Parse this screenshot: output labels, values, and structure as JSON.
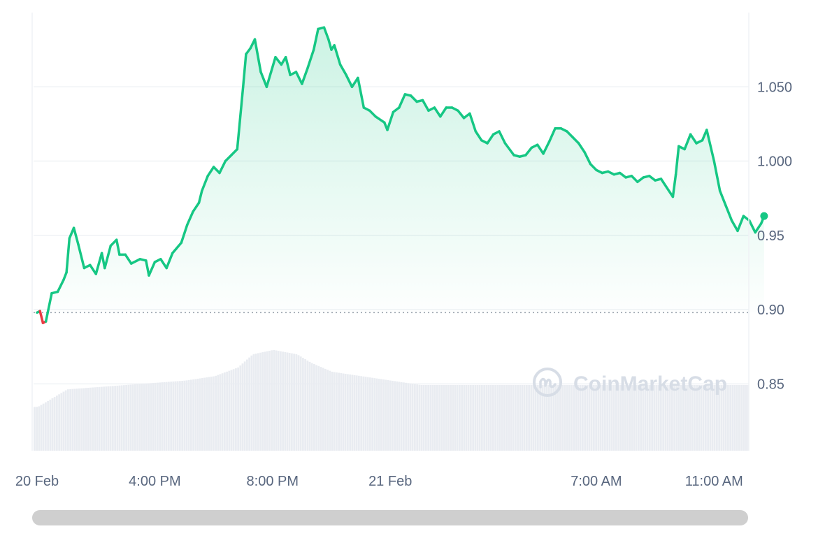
{
  "watermark": "CoinMarketCap",
  "colors": {
    "up": "#16c784",
    "down": "#ea3943",
    "grid": "#eff2f5",
    "volume": "#e9ecf1",
    "text": "#58667e"
  },
  "chart_data": {
    "type": "area",
    "baseline": 0.898,
    "ylim": [
      0.805,
      1.1
    ],
    "y_ticks": [
      {
        "value": 1.05,
        "label": "1.050"
      },
      {
        "value": 1.0,
        "label": "1.000"
      },
      {
        "value": 0.95,
        "label": "0.95"
      },
      {
        "value": 0.9,
        "label": "0.90"
      },
      {
        "value": 0.85,
        "label": "0.85"
      }
    ],
    "x_range": [
      0,
      24
    ],
    "x_ticks": [
      {
        "t": 0,
        "label": "20 Feb"
      },
      {
        "t": 4,
        "label": "4:00 PM"
      },
      {
        "t": 8,
        "label": "8:00 PM"
      },
      {
        "t": 12,
        "label": "21 Feb"
      },
      {
        "t": 19,
        "label": "7:00 AM"
      },
      {
        "t": 23,
        "label": "11:00 AM"
      }
    ],
    "series": [
      {
        "values": [
          [
            0.0,
            0.898
          ],
          [
            0.1,
            0.899
          ],
          [
            0.2,
            0.891
          ],
          [
            0.3,
            0.892
          ],
          [
            0.5,
            0.911
          ],
          [
            0.7,
            0.912
          ],
          [
            0.9,
            0.92
          ],
          [
            1.0,
            0.925
          ],
          [
            1.1,
            0.948
          ],
          [
            1.25,
            0.955
          ],
          [
            1.4,
            0.944
          ],
          [
            1.6,
            0.928
          ],
          [
            1.8,
            0.93
          ],
          [
            2.0,
            0.924
          ],
          [
            2.2,
            0.938
          ],
          [
            2.3,
            0.928
          ],
          [
            2.5,
            0.943
          ],
          [
            2.7,
            0.947
          ],
          [
            2.8,
            0.937
          ],
          [
            3.0,
            0.937
          ],
          [
            3.2,
            0.931
          ],
          [
            3.5,
            0.934
          ],
          [
            3.7,
            0.933
          ],
          [
            3.8,
            0.923
          ],
          [
            4.0,
            0.932
          ],
          [
            4.2,
            0.934
          ],
          [
            4.4,
            0.928
          ],
          [
            4.6,
            0.938
          ],
          [
            4.9,
            0.945
          ],
          [
            5.1,
            0.957
          ],
          [
            5.3,
            0.966
          ],
          [
            5.5,
            0.972
          ],
          [
            5.6,
            0.98
          ],
          [
            5.8,
            0.99
          ],
          [
            6.0,
            0.996
          ],
          [
            6.2,
            0.992
          ],
          [
            6.4,
            1.0
          ],
          [
            6.6,
            1.004
          ],
          [
            6.8,
            1.008
          ],
          [
            7.0,
            1.05
          ],
          [
            7.1,
            1.072
          ],
          [
            7.25,
            1.076
          ],
          [
            7.4,
            1.082
          ],
          [
            7.6,
            1.06
          ],
          [
            7.8,
            1.05
          ],
          [
            7.95,
            1.06
          ],
          [
            8.1,
            1.07
          ],
          [
            8.3,
            1.065
          ],
          [
            8.45,
            1.07
          ],
          [
            8.6,
            1.058
          ],
          [
            8.8,
            1.06
          ],
          [
            9.0,
            1.052
          ],
          [
            9.2,
            1.063
          ],
          [
            9.4,
            1.075
          ],
          [
            9.55,
            1.089
          ],
          [
            9.75,
            1.09
          ],
          [
            9.9,
            1.082
          ],
          [
            10.0,
            1.075
          ],
          [
            10.1,
            1.078
          ],
          [
            10.3,
            1.065
          ],
          [
            10.5,
            1.058
          ],
          [
            10.7,
            1.05
          ],
          [
            10.9,
            1.056
          ],
          [
            11.1,
            1.036
          ],
          [
            11.3,
            1.034
          ],
          [
            11.5,
            1.03
          ],
          [
            11.8,
            1.026
          ],
          [
            11.9,
            1.021
          ],
          [
            12.1,
            1.033
          ],
          [
            12.3,
            1.036
          ],
          [
            12.5,
            1.045
          ],
          [
            12.7,
            1.044
          ],
          [
            12.9,
            1.04
          ],
          [
            13.1,
            1.041
          ],
          [
            13.3,
            1.034
          ],
          [
            13.5,
            1.036
          ],
          [
            13.7,
            1.03
          ],
          [
            13.9,
            1.036
          ],
          [
            14.1,
            1.036
          ],
          [
            14.3,
            1.034
          ],
          [
            14.5,
            1.029
          ],
          [
            14.7,
            1.032
          ],
          [
            14.9,
            1.02
          ],
          [
            15.1,
            1.014
          ],
          [
            15.3,
            1.012
          ],
          [
            15.5,
            1.018
          ],
          [
            15.7,
            1.02
          ],
          [
            15.9,
            1.012
          ],
          [
            16.2,
            1.004
          ],
          [
            16.4,
            1.003
          ],
          [
            16.6,
            1.004
          ],
          [
            16.8,
            1.009
          ],
          [
            17.0,
            1.011
          ],
          [
            17.2,
            1.005
          ],
          [
            17.4,
            1.013
          ],
          [
            17.6,
            1.022
          ],
          [
            17.8,
            1.022
          ],
          [
            18.0,
            1.02
          ],
          [
            18.2,
            1.016
          ],
          [
            18.4,
            1.012
          ],
          [
            18.6,
            1.006
          ],
          [
            18.8,
            0.998
          ],
          [
            19.0,
            0.994
          ],
          [
            19.2,
            0.992
          ],
          [
            19.4,
            0.993
          ],
          [
            19.6,
            0.991
          ],
          [
            19.8,
            0.992
          ],
          [
            20.0,
            0.989
          ],
          [
            20.2,
            0.99
          ],
          [
            20.4,
            0.986
          ],
          [
            20.6,
            0.989
          ],
          [
            20.8,
            0.99
          ],
          [
            21.0,
            0.987
          ],
          [
            21.2,
            0.988
          ],
          [
            21.4,
            0.982
          ],
          [
            21.6,
            0.976
          ],
          [
            21.7,
            0.991
          ],
          [
            21.8,
            1.01
          ],
          [
            22.0,
            1.008
          ],
          [
            22.2,
            1.018
          ],
          [
            22.4,
            1.012
          ],
          [
            22.6,
            1.014
          ],
          [
            22.75,
            1.021
          ],
          [
            23.0,
            1.0
          ],
          [
            23.2,
            0.98
          ],
          [
            23.4,
            0.97
          ],
          [
            23.6,
            0.96
          ],
          [
            23.8,
            0.953
          ],
          [
            24.0,
            0.963
          ],
          [
            24.2,
            0.96
          ],
          [
            24.4,
            0.952
          ],
          [
            24.6,
            0.958
          ],
          [
            24.7,
            0.963
          ]
        ]
      }
    ],
    "volume": {
      "levels": [
        [
          0.0,
          0.1
        ],
        [
          0.5,
          0.12
        ],
        [
          1.0,
          0.14
        ],
        [
          3.0,
          0.15
        ],
        [
          5.0,
          0.16
        ],
        [
          6.0,
          0.17
        ],
        [
          6.8,
          0.19
        ],
        [
          7.3,
          0.22
        ],
        [
          8.0,
          0.23
        ],
        [
          8.8,
          0.22
        ],
        [
          9.3,
          0.2
        ],
        [
          10.0,
          0.18
        ],
        [
          11.0,
          0.17
        ],
        [
          12.0,
          0.16
        ],
        [
          13.0,
          0.15
        ],
        [
          24.7,
          0.15
        ]
      ]
    }
  },
  "scrollbar": {
    "label": ""
  }
}
